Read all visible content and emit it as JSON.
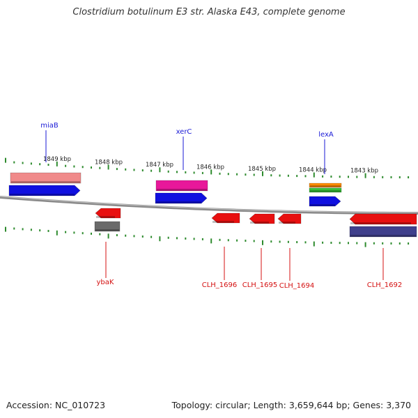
{
  "title": "Clostridium botulinum E3 str. Alaska E43, complete genome",
  "accession": "Accession: NC_010723",
  "topology": "Topology: circular; Length: 3,659,644 bp; Genes: 3,370",
  "ruler": [
    {
      "label": "1849 kbp"
    },
    {
      "label": "1848 kbp"
    },
    {
      "label": "1847 kbp"
    },
    {
      "label": "1846 kbp"
    },
    {
      "label": "1845 kbp"
    },
    {
      "label": "1844 kbp"
    },
    {
      "label": "1843 kbp"
    }
  ],
  "features": [
    {
      "id": "miaB",
      "label": "miaB",
      "label_color": "#1a1ad6",
      "strand": "+",
      "colors": [
        "#f08a8a",
        "#1010e0"
      ]
    },
    {
      "id": "xerC",
      "label": "xerC",
      "label_color": "#1a1ad6",
      "strand": "+",
      "colors": [
        "#e8189a",
        "#1010e0"
      ]
    },
    {
      "id": "lexA",
      "label": "lexA",
      "label_color": "#1a1ad6",
      "strand": "+",
      "colors": [
        "#ff8c00",
        "#38c038",
        "#1010e0"
      ]
    },
    {
      "id": "ybaK",
      "label": "ybaK",
      "label_color": "#d41010",
      "strand": "-",
      "colors": [
        "#e81010",
        "#6a6a6a"
      ]
    },
    {
      "id": "CLH_1696",
      "label": "CLH_1696",
      "label_color": "#d41010",
      "strand": "-",
      "colors": [
        "#e81010"
      ]
    },
    {
      "id": "CLH_1695",
      "label": "CLH_1695",
      "label_color": "#d41010",
      "strand": "-",
      "colors": [
        "#e81010"
      ]
    },
    {
      "id": "CLH_1694",
      "label": "CLH_1694",
      "label_color": "#d41010",
      "strand": "-",
      "colors": [
        "#e81010"
      ]
    },
    {
      "id": "CLH_1692",
      "label": "CLH_1692",
      "label_color": "#d41010",
      "strand": "-",
      "colors": [
        "#e81010",
        "#40408c"
      ]
    }
  ],
  "colors": {
    "backbone": "#8a8a8a",
    "tick": "#2e8b2e",
    "ruler_text": "#222222"
  }
}
